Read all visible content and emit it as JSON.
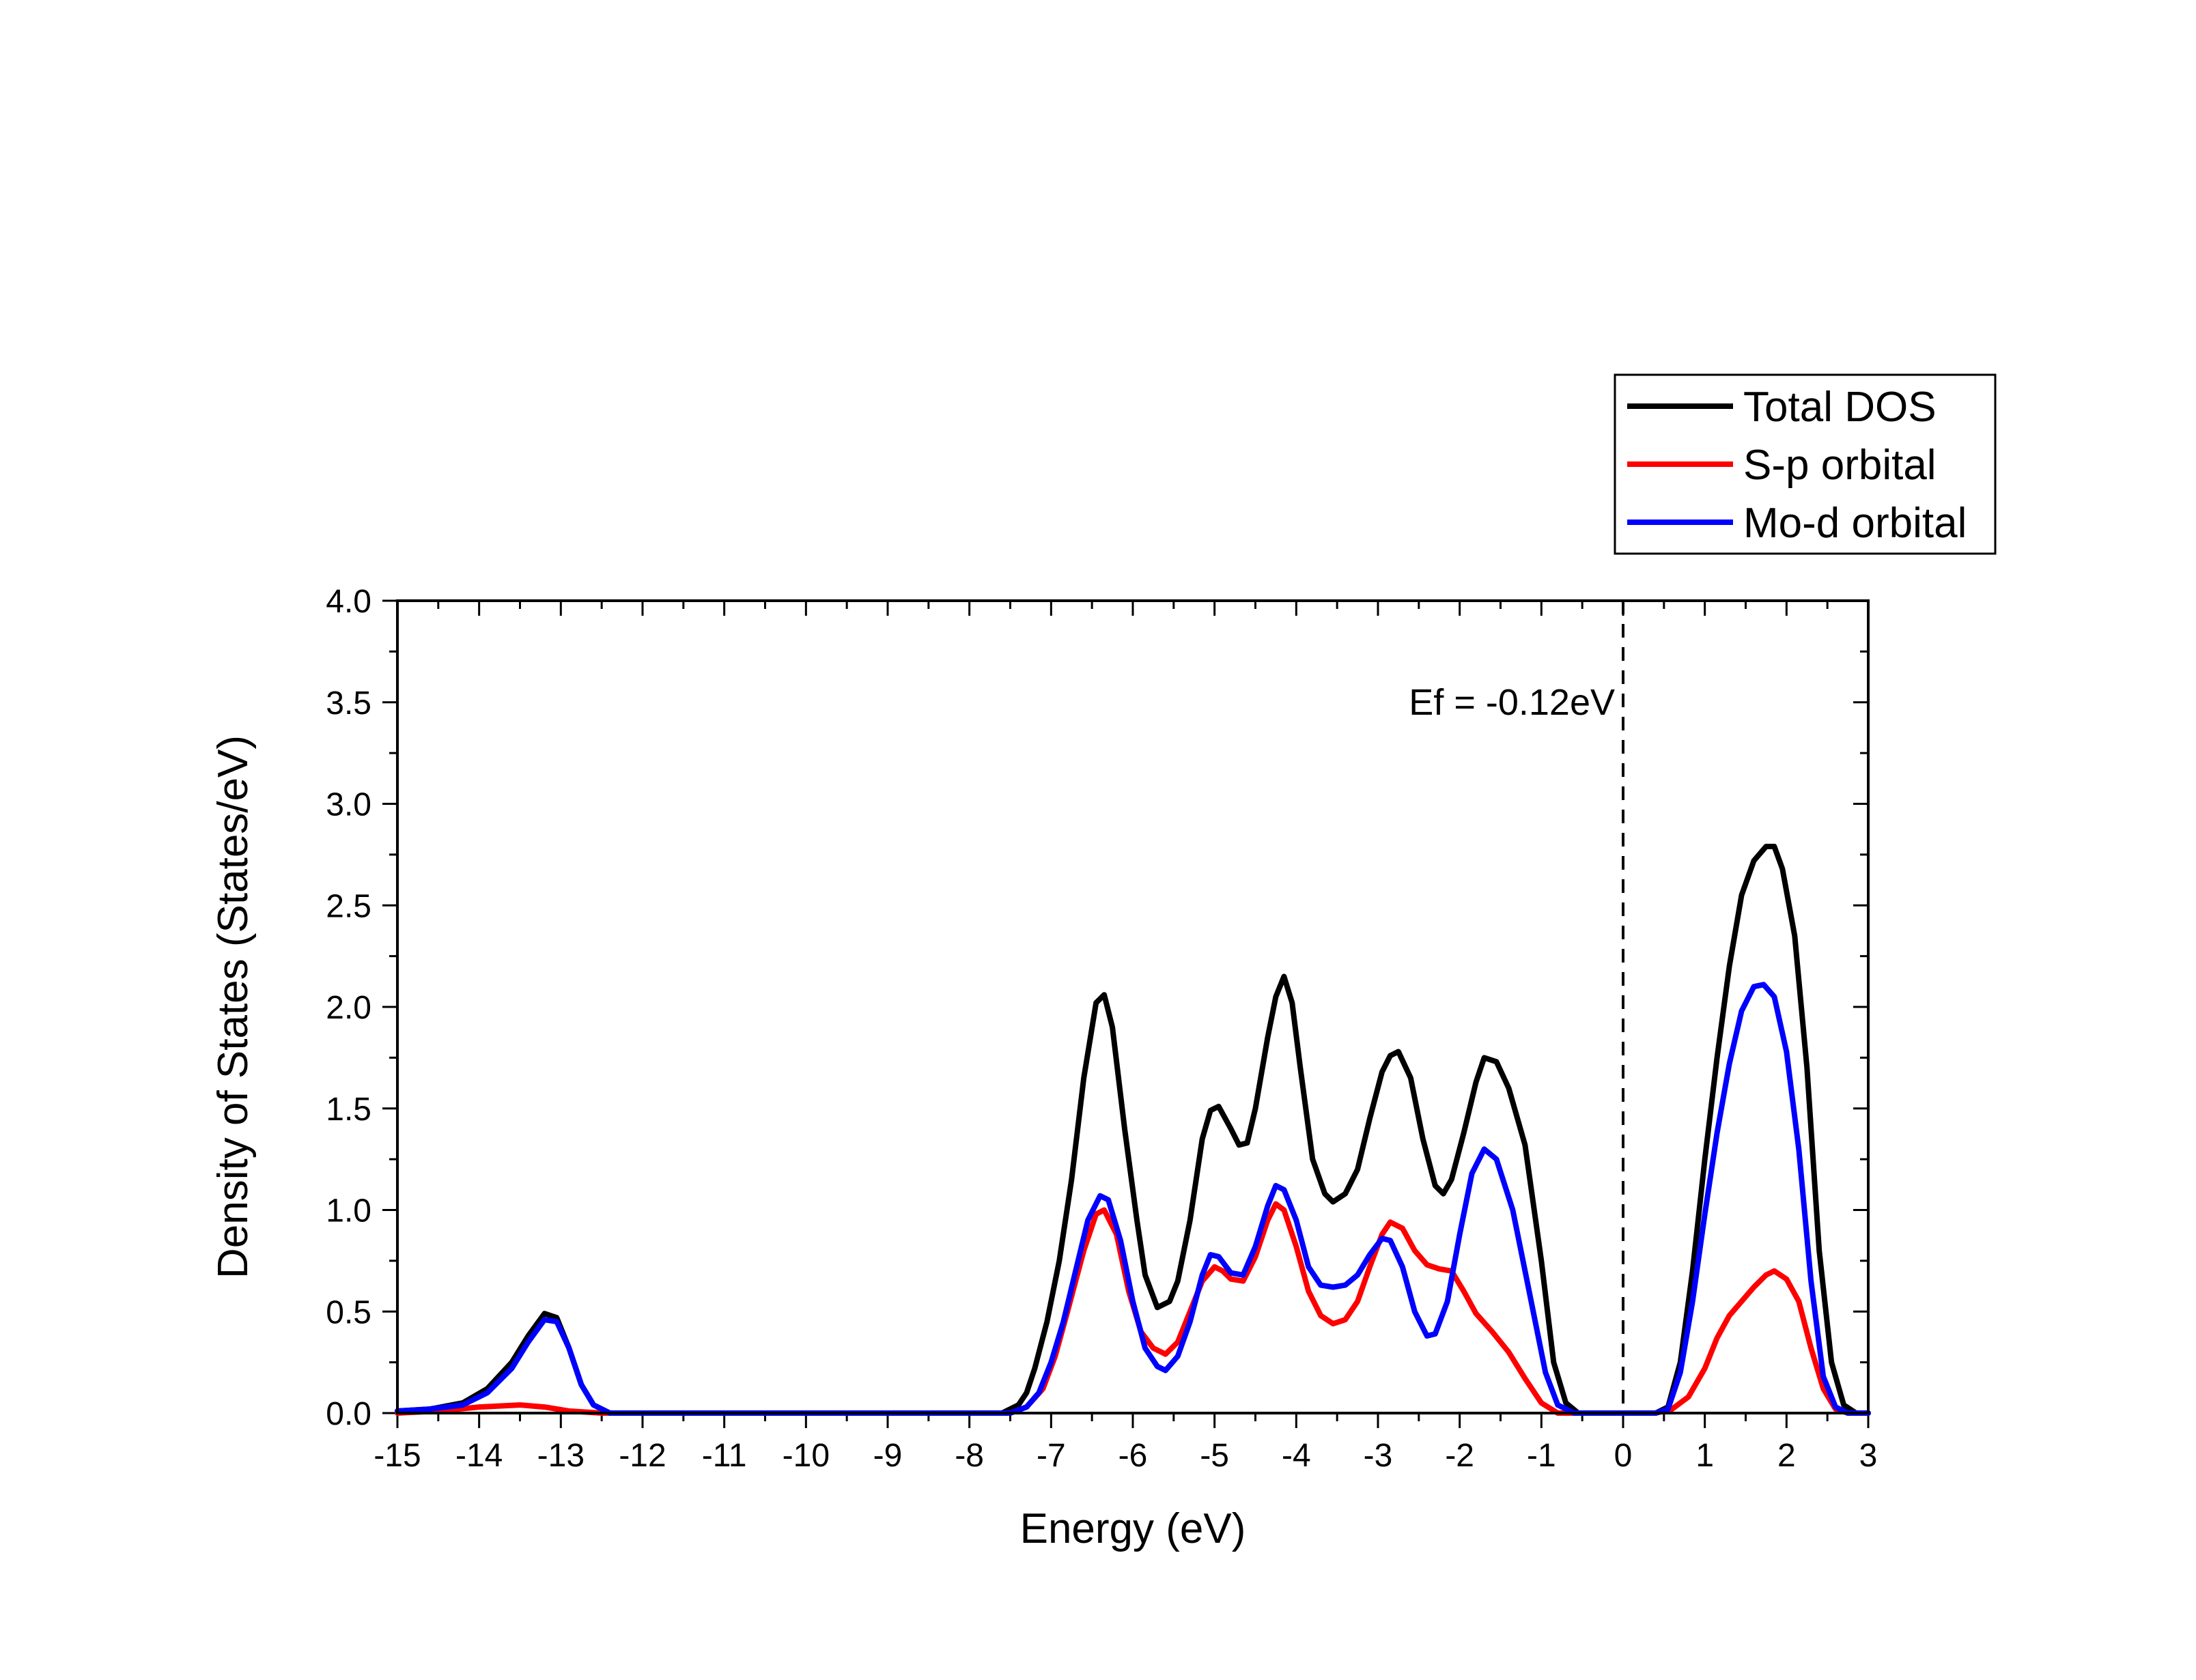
{
  "chart_data": {
    "type": "line",
    "title": "",
    "xlabel": "Energy (eV)",
    "ylabel": "Density of States (States/eV)",
    "xlim": [
      -15,
      3
    ],
    "ylim": [
      0,
      4.0
    ],
    "xticks": [
      "-15",
      "-14",
      "-13",
      "-12",
      "-11",
      "-10",
      "-9",
      "-8",
      "-7",
      "-6",
      "-5",
      "-4",
      "-3",
      "-2",
      "-1",
      "0",
      "1",
      "2",
      "3"
    ],
    "yticks": [
      "0.0",
      "0.5",
      "1.0",
      "1.5",
      "2.0",
      "2.5",
      "3.0",
      "3.5",
      "4.0"
    ],
    "grid": false,
    "legend_position": "top-right, outside plot",
    "annotation": {
      "text": "Ef = -0.12eV",
      "x": 0
    },
    "series": [
      {
        "name": "Total DOS",
        "color": "#000000",
        "points": [
          [
            -15,
            0.01
          ],
          [
            -14.6,
            0.02
          ],
          [
            -14.2,
            0.05
          ],
          [
            -13.9,
            0.12
          ],
          [
            -13.6,
            0.25
          ],
          [
            -13.4,
            0.38
          ],
          [
            -13.2,
            0.49
          ],
          [
            -13.05,
            0.47
          ],
          [
            -12.9,
            0.32
          ],
          [
            -12.75,
            0.14
          ],
          [
            -12.6,
            0.04
          ],
          [
            -12.4,
            0.0
          ],
          [
            -8,
            0.0
          ],
          [
            -7.6,
            0.0
          ],
          [
            -7.4,
            0.04
          ],
          [
            -7.3,
            0.1
          ],
          [
            -7.2,
            0.22
          ],
          [
            -7.05,
            0.45
          ],
          [
            -6.9,
            0.75
          ],
          [
            -6.75,
            1.15
          ],
          [
            -6.6,
            1.65
          ],
          [
            -6.45,
            2.02
          ],
          [
            -6.35,
            2.06
          ],
          [
            -6.25,
            1.9
          ],
          [
            -6.1,
            1.4
          ],
          [
            -5.95,
            0.95
          ],
          [
            -5.85,
            0.68
          ],
          [
            -5.7,
            0.52
          ],
          [
            -5.55,
            0.55
          ],
          [
            -5.45,
            0.65
          ],
          [
            -5.3,
            0.95
          ],
          [
            -5.15,
            1.35
          ],
          [
            -5.05,
            1.49
          ],
          [
            -4.95,
            1.51
          ],
          [
            -4.8,
            1.4
          ],
          [
            -4.7,
            1.32
          ],
          [
            -4.6,
            1.33
          ],
          [
            -4.5,
            1.5
          ],
          [
            -4.35,
            1.85
          ],
          [
            -4.25,
            2.05
          ],
          [
            -4.15,
            2.15
          ],
          [
            -4.05,
            2.02
          ],
          [
            -3.95,
            1.7
          ],
          [
            -3.8,
            1.25
          ],
          [
            -3.65,
            1.08
          ],
          [
            -3.55,
            1.04
          ],
          [
            -3.4,
            1.08
          ],
          [
            -3.25,
            1.2
          ],
          [
            -3.1,
            1.45
          ],
          [
            -2.95,
            1.68
          ],
          [
            -2.85,
            1.76
          ],
          [
            -2.75,
            1.78
          ],
          [
            -2.6,
            1.65
          ],
          [
            -2.45,
            1.35
          ],
          [
            -2.3,
            1.12
          ],
          [
            -2.2,
            1.08
          ],
          [
            -2.1,
            1.15
          ],
          [
            -1.95,
            1.38
          ],
          [
            -1.8,
            1.63
          ],
          [
            -1.7,
            1.75
          ],
          [
            -1.55,
            1.73
          ],
          [
            -1.4,
            1.6
          ],
          [
            -1.2,
            1.32
          ],
          [
            -1.0,
            0.75
          ],
          [
            -0.85,
            0.25
          ],
          [
            -0.7,
            0.05
          ],
          [
            -0.55,
            0.0
          ],
          [
            0.4,
            0.0
          ],
          [
            0.55,
            0.03
          ],
          [
            0.7,
            0.25
          ],
          [
            0.85,
            0.7
          ],
          [
            1.0,
            1.25
          ],
          [
            1.15,
            1.75
          ],
          [
            1.3,
            2.2
          ],
          [
            1.45,
            2.55
          ],
          [
            1.6,
            2.72
          ],
          [
            1.75,
            2.79
          ],
          [
            1.85,
            2.79
          ],
          [
            1.95,
            2.68
          ],
          [
            2.1,
            2.35
          ],
          [
            2.25,
            1.7
          ],
          [
            2.4,
            0.8
          ],
          [
            2.55,
            0.25
          ],
          [
            2.7,
            0.04
          ],
          [
            2.85,
            0.0
          ],
          [
            3.0,
            0.0
          ]
        ]
      },
      {
        "name": "S-p orbital",
        "color": "#ff0000",
        "points": [
          [
            -15,
            0.0
          ],
          [
            -14.5,
            0.01
          ],
          [
            -14,
            0.03
          ],
          [
            -13.5,
            0.04
          ],
          [
            -13.2,
            0.03
          ],
          [
            -12.9,
            0.01
          ],
          [
            -12.5,
            0.0
          ],
          [
            -8,
            0.0
          ],
          [
            -7.5,
            0.0
          ],
          [
            -7.3,
            0.03
          ],
          [
            -7.1,
            0.12
          ],
          [
            -6.95,
            0.28
          ],
          [
            -6.8,
            0.5
          ],
          [
            -6.6,
            0.8
          ],
          [
            -6.45,
            0.98
          ],
          [
            -6.35,
            1.0
          ],
          [
            -6.2,
            0.88
          ],
          [
            -6.05,
            0.6
          ],
          [
            -5.9,
            0.4
          ],
          [
            -5.75,
            0.32
          ],
          [
            -5.6,
            0.29
          ],
          [
            -5.45,
            0.35
          ],
          [
            -5.3,
            0.5
          ],
          [
            -5.15,
            0.65
          ],
          [
            -5.0,
            0.72
          ],
          [
            -4.9,
            0.7
          ],
          [
            -4.8,
            0.66
          ],
          [
            -4.65,
            0.65
          ],
          [
            -4.5,
            0.77
          ],
          [
            -4.35,
            0.95
          ],
          [
            -4.25,
            1.03
          ],
          [
            -4.15,
            1.0
          ],
          [
            -4.0,
            0.82
          ],
          [
            -3.85,
            0.6
          ],
          [
            -3.7,
            0.48
          ],
          [
            -3.55,
            0.44
          ],
          [
            -3.4,
            0.46
          ],
          [
            -3.25,
            0.55
          ],
          [
            -3.1,
            0.72
          ],
          [
            -2.95,
            0.88
          ],
          [
            -2.85,
            0.94
          ],
          [
            -2.7,
            0.91
          ],
          [
            -2.55,
            0.8
          ],
          [
            -2.4,
            0.73
          ],
          [
            -2.25,
            0.71
          ],
          [
            -2.1,
            0.7
          ],
          [
            -1.95,
            0.6
          ],
          [
            -1.8,
            0.49
          ],
          [
            -1.6,
            0.4
          ],
          [
            -1.4,
            0.3
          ],
          [
            -1.2,
            0.17
          ],
          [
            -1.0,
            0.05
          ],
          [
            -0.8,
            0.0
          ],
          [
            0.4,
            0.0
          ],
          [
            0.6,
            0.02
          ],
          [
            0.8,
            0.08
          ],
          [
            1.0,
            0.22
          ],
          [
            1.15,
            0.37
          ],
          [
            1.3,
            0.48
          ],
          [
            1.45,
            0.55
          ],
          [
            1.6,
            0.62
          ],
          [
            1.75,
            0.68
          ],
          [
            1.85,
            0.7
          ],
          [
            2.0,
            0.66
          ],
          [
            2.15,
            0.55
          ],
          [
            2.3,
            0.32
          ],
          [
            2.45,
            0.12
          ],
          [
            2.6,
            0.02
          ],
          [
            2.75,
            0.0
          ],
          [
            3.0,
            0.0
          ]
        ]
      },
      {
        "name": "Mo-d orbital",
        "color": "#0000ff",
        "points": [
          [
            -15,
            0.01
          ],
          [
            -14.6,
            0.02
          ],
          [
            -14.2,
            0.04
          ],
          [
            -13.9,
            0.1
          ],
          [
            -13.6,
            0.22
          ],
          [
            -13.4,
            0.35
          ],
          [
            -13.2,
            0.46
          ],
          [
            -13.05,
            0.45
          ],
          [
            -12.9,
            0.32
          ],
          [
            -12.75,
            0.14
          ],
          [
            -12.6,
            0.04
          ],
          [
            -12.4,
            0.0
          ],
          [
            -8,
            0.0
          ],
          [
            -7.5,
            0.0
          ],
          [
            -7.3,
            0.03
          ],
          [
            -7.15,
            0.1
          ],
          [
            -7.0,
            0.25
          ],
          [
            -6.85,
            0.45
          ],
          [
            -6.7,
            0.7
          ],
          [
            -6.55,
            0.95
          ],
          [
            -6.4,
            1.07
          ],
          [
            -6.3,
            1.05
          ],
          [
            -6.15,
            0.85
          ],
          [
            -6.0,
            0.55
          ],
          [
            -5.85,
            0.32
          ],
          [
            -5.7,
            0.23
          ],
          [
            -5.6,
            0.21
          ],
          [
            -5.45,
            0.28
          ],
          [
            -5.3,
            0.45
          ],
          [
            -5.15,
            0.68
          ],
          [
            -5.05,
            0.78
          ],
          [
            -4.95,
            0.77
          ],
          [
            -4.8,
            0.69
          ],
          [
            -4.65,
            0.68
          ],
          [
            -4.5,
            0.82
          ],
          [
            -4.35,
            1.02
          ],
          [
            -4.25,
            1.12
          ],
          [
            -4.15,
            1.1
          ],
          [
            -4.0,
            0.95
          ],
          [
            -3.85,
            0.72
          ],
          [
            -3.7,
            0.63
          ],
          [
            -3.55,
            0.62
          ],
          [
            -3.4,
            0.63
          ],
          [
            -3.25,
            0.68
          ],
          [
            -3.1,
            0.78
          ],
          [
            -2.95,
            0.86
          ],
          [
            -2.85,
            0.85
          ],
          [
            -2.7,
            0.72
          ],
          [
            -2.55,
            0.5
          ],
          [
            -2.4,
            0.38
          ],
          [
            -2.3,
            0.39
          ],
          [
            -2.15,
            0.55
          ],
          [
            -2.0,
            0.88
          ],
          [
            -1.85,
            1.18
          ],
          [
            -1.7,
            1.3
          ],
          [
            -1.55,
            1.25
          ],
          [
            -1.35,
            1.0
          ],
          [
            -1.15,
            0.6
          ],
          [
            -0.95,
            0.2
          ],
          [
            -0.8,
            0.04
          ],
          [
            -0.6,
            0.0
          ],
          [
            0.4,
            0.0
          ],
          [
            0.55,
            0.02
          ],
          [
            0.7,
            0.2
          ],
          [
            0.85,
            0.55
          ],
          [
            1.0,
            0.98
          ],
          [
            1.15,
            1.38
          ],
          [
            1.3,
            1.72
          ],
          [
            1.45,
            1.98
          ],
          [
            1.6,
            2.1
          ],
          [
            1.72,
            2.11
          ],
          [
            1.85,
            2.05
          ],
          [
            2.0,
            1.78
          ],
          [
            2.15,
            1.3
          ],
          [
            2.3,
            0.65
          ],
          [
            2.45,
            0.18
          ],
          [
            2.6,
            0.03
          ],
          [
            2.75,
            0.0
          ],
          [
            3.0,
            0.0
          ]
        ]
      }
    ]
  }
}
